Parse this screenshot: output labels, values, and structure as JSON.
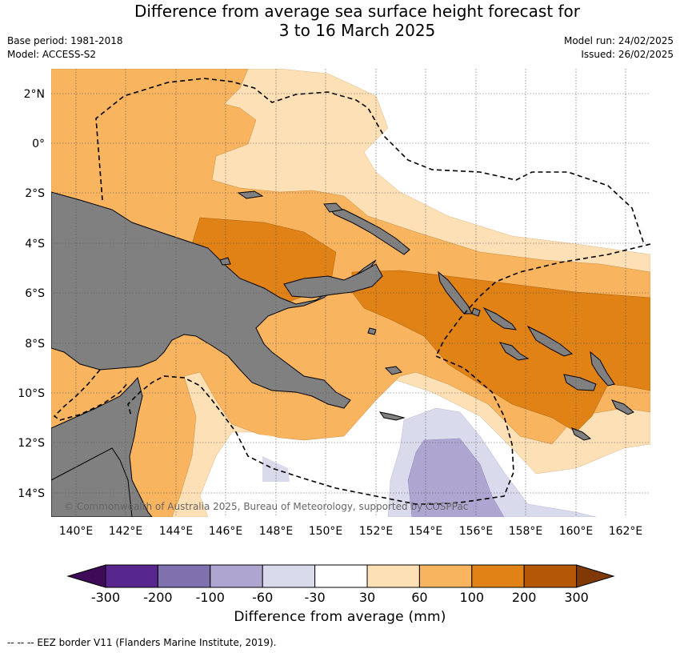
{
  "title_line1": "Difference from average sea surface height forecast for",
  "title_line2": "3 to 16 March 2025",
  "base_period": "Base period: 1981-2018",
  "model": "Model: ACCESS-S2",
  "model_run": "Model run: 24/02/2025",
  "issued": "Issued: 26/02/2025",
  "copyright": "© Commonwealth of Australia 2025, Bureau of Meteorology, supported by COSPPac",
  "lat_labels": [
    "2°N",
    "0°",
    "2°S",
    "4°S",
    "6°S",
    "8°S",
    "10°S",
    "12°S",
    "14°S"
  ],
  "lon_labels": [
    "140°E",
    "142°E",
    "144°E",
    "146°E",
    "148°E",
    "150°E",
    "152°E",
    "154°E",
    "156°E",
    "158°E",
    "160°E",
    "162°E"
  ],
  "colorbar": {
    "title": "Difference from average (mm)",
    "tick_labels": [
      "-300",
      "-200",
      "-100",
      "-60",
      "-30",
      "30",
      "60",
      "100",
      "200",
      "300"
    ],
    "colors": [
      "#3f0a57",
      "#58268f",
      "#7f70ae",
      "#afa5d1",
      "#d9daeb",
      "#ffffff",
      "#fee0b6",
      "#f9b45f",
      "#e08215",
      "#b35806",
      "#803906"
    ]
  },
  "map_colors": {
    "land": "#808080",
    "c30_60": "#fee0b6",
    "c60_100": "#f9b45f",
    "c100_200": "#e08215",
    "cneg30_60": "#d9daeb",
    "cneg60_100": "#afa5d1"
  },
  "footnote": "-- -- -- EEZ border V11 (Flanders Marine Institute, 2019)."
}
